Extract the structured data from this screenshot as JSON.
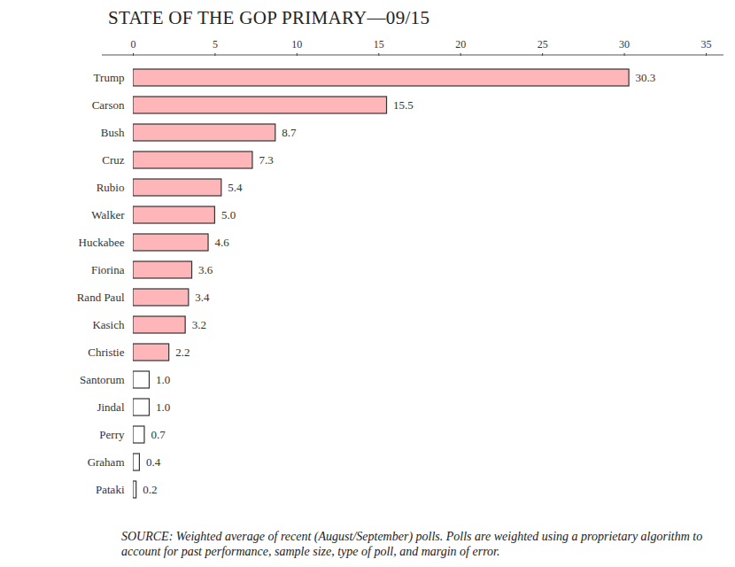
{
  "chart_data": {
    "type": "bar",
    "title": "STATE OF THE GOP PRIMARY—09/15",
    "caption": "SOURCE: Weighted average of recent (August/September) polls.  Polls are weighted using a proprietary algorithm to account for past performance, sample size, type of poll, and margin of error.",
    "orientation": "horizontal",
    "categories": [
      "Trump",
      "Carson",
      "Bush",
      "Cruz",
      "Rubio",
      "Walker",
      "Huckabee",
      "Fiorina",
      "Rand Paul",
      "Kasich",
      "Christie",
      "Santorum",
      "Jindal",
      "Perry",
      "Graham",
      "Pataki"
    ],
    "values": [
      30.3,
      15.5,
      8.7,
      7.3,
      5.4,
      5.0,
      4.6,
      3.6,
      3.4,
      3.2,
      2.2,
      1.0,
      1.0,
      0.7,
      0.4,
      0.2
    ],
    "value_labels": [
      "30.3",
      "15.5",
      "8.7",
      "7.3",
      "5.4",
      "5.0",
      "4.6",
      "3.6",
      "3.4",
      "3.2",
      "2.2",
      "1.0",
      "1.0",
      "0.7",
      "0.4",
      "0.2"
    ],
    "colors": [
      "#ffb6b9",
      "#ffb6b9",
      "#ffb6b9",
      "#ffb6b9",
      "#ffb6b9",
      "#ffb6b9",
      "#ffb6b9",
      "#ffb6b9",
      "#ffb6b9",
      "#ffb6b9",
      "#ffb6b9",
      "#ffffff",
      "#ffffff",
      "#ffffff",
      "#ffffff",
      "#ffffff"
    ],
    "xlim": [
      0,
      35
    ],
    "xticks": [
      0,
      5,
      10,
      15,
      20,
      25,
      30,
      35
    ],
    "grid": false,
    "data_labels": true
  }
}
